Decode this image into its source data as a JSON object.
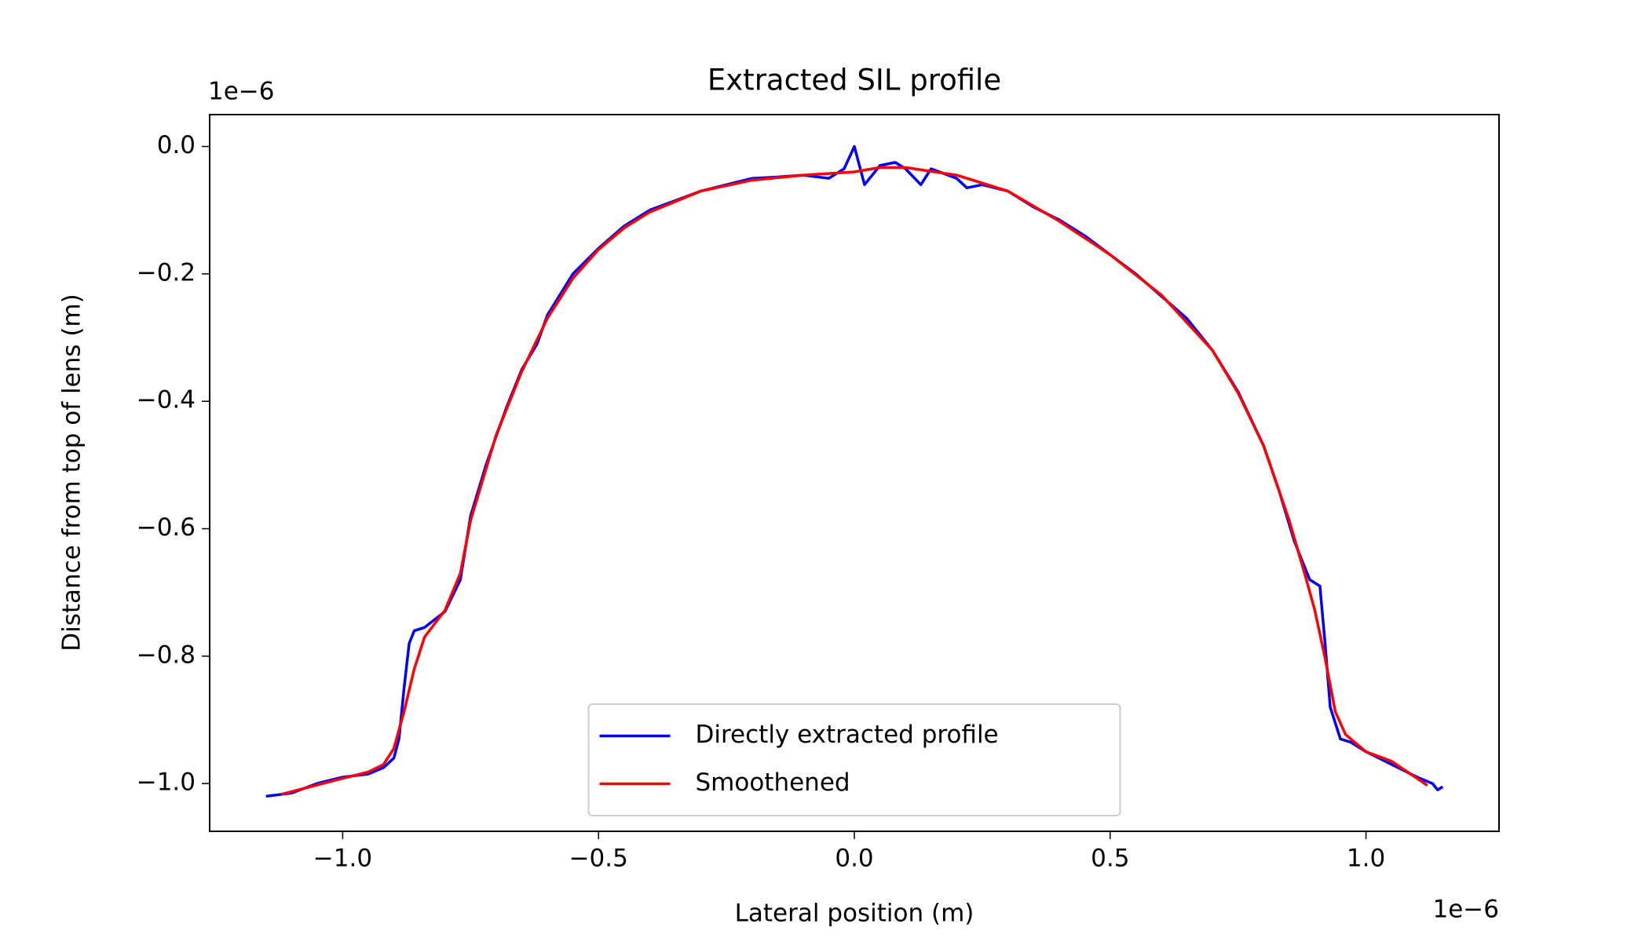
{
  "chart_data": {
    "type": "line",
    "title": "Extracted SIL profile",
    "x_label": "Lateral position (m)",
    "y_label": "Distance from top of lens (m)",
    "x_offset_label": "1e−6",
    "y_offset_label": "1e−6",
    "xlim": [
      -1.26,
      1.26
    ],
    "ylim": [
      -1.075,
      0.05
    ],
    "xticks": [
      {
        "value": -1.0,
        "label": "−1.0"
      },
      {
        "value": -0.5,
        "label": "−0.5"
      },
      {
        "value": 0.0,
        "label": "0.0"
      },
      0.5,
      {
        "value": 1.0,
        "label": "1.0"
      }
    ],
    "yticks": [
      {
        "value": 0.0,
        "label": "0.0"
      },
      {
        "value": -0.2,
        "label": "−0.2"
      },
      {
        "value": -0.4,
        "label": "−0.4"
      },
      {
        "value": -0.6,
        "label": "−0.6"
      },
      {
        "value": -0.8,
        "label": "−0.8"
      },
      {
        "value": -1.0,
        "label": "−1.0"
      }
    ],
    "grid": false,
    "legend": "lower center",
    "series": [
      {
        "name": "Directly extracted profile",
        "color": "#0000ff",
        "x": [
          -1.15,
          -1.1,
          -1.05,
          -1.0,
          -0.95,
          -0.92,
          -0.9,
          -0.89,
          -0.88,
          -0.87,
          -0.86,
          -0.84,
          -0.8,
          -0.77,
          -0.75,
          -0.72,
          -0.7,
          -0.68,
          -0.65,
          -0.62,
          -0.6,
          -0.55,
          -0.5,
          -0.45,
          -0.4,
          -0.35,
          -0.3,
          -0.25,
          -0.2,
          -0.15,
          -0.1,
          -0.05,
          -0.02,
          0.0,
          0.02,
          0.05,
          0.08,
          0.1,
          0.13,
          0.15,
          0.2,
          0.22,
          0.25,
          0.3,
          0.35,
          0.4,
          0.45,
          0.5,
          0.55,
          0.6,
          0.65,
          0.7,
          0.75,
          0.8,
          0.83,
          0.86,
          0.88,
          0.89,
          0.91,
          0.92,
          0.93,
          0.95,
          0.97,
          1.0,
          1.05,
          1.1,
          1.13,
          1.14,
          1.15
        ],
        "values": [
          -1.02,
          -1.015,
          -1.0,
          -0.99,
          -0.985,
          -0.975,
          -0.96,
          -0.93,
          -0.85,
          -0.78,
          -0.76,
          -0.755,
          -0.73,
          -0.68,
          -0.58,
          -0.5,
          -0.455,
          -0.41,
          -0.35,
          -0.31,
          -0.265,
          -0.2,
          -0.16,
          -0.125,
          -0.1,
          -0.085,
          -0.07,
          -0.06,
          -0.05,
          -0.048,
          -0.045,
          -0.05,
          -0.035,
          0.0,
          -0.06,
          -0.03,
          -0.025,
          -0.035,
          -0.06,
          -0.035,
          -0.05,
          -0.065,
          -0.06,
          -0.07,
          -0.095,
          -0.115,
          -0.14,
          -0.17,
          -0.2,
          -0.235,
          -0.27,
          -0.32,
          -0.385,
          -0.47,
          -0.54,
          -0.62,
          -0.66,
          -0.68,
          -0.69,
          -0.78,
          -0.88,
          -0.93,
          -0.935,
          -0.95,
          -0.97,
          -0.99,
          -1.0,
          -1.01,
          -1.005
        ]
      },
      {
        "name": "Smoothened",
        "color": "#ff0000",
        "x": [
          -1.12,
          -1.0,
          -0.95,
          -0.92,
          -0.9,
          -0.88,
          -0.86,
          -0.84,
          -0.8,
          -0.77,
          -0.75,
          -0.7,
          -0.65,
          -0.6,
          -0.55,
          -0.5,
          -0.45,
          -0.4,
          -0.3,
          -0.2,
          -0.1,
          0.0,
          0.05,
          0.1,
          0.2,
          0.3,
          0.4,
          0.5,
          0.6,
          0.7,
          0.75,
          0.8,
          0.85,
          0.88,
          0.9,
          0.92,
          0.94,
          0.96,
          1.0,
          1.05,
          1.1,
          1.12
        ],
        "values": [
          -1.017,
          -0.992,
          -0.982,
          -0.97,
          -0.945,
          -0.887,
          -0.82,
          -0.77,
          -0.728,
          -0.67,
          -0.587,
          -0.453,
          -0.353,
          -0.27,
          -0.207,
          -0.162,
          -0.128,
          -0.103,
          -0.07,
          -0.053,
          -0.045,
          -0.04,
          -0.033,
          -0.033,
          -0.045,
          -0.07,
          -0.117,
          -0.17,
          -0.233,
          -0.32,
          -0.387,
          -0.47,
          -0.587,
          -0.67,
          -0.728,
          -0.803,
          -0.887,
          -0.923,
          -0.95,
          -0.965,
          -0.992,
          -1.003
        ]
      }
    ]
  }
}
